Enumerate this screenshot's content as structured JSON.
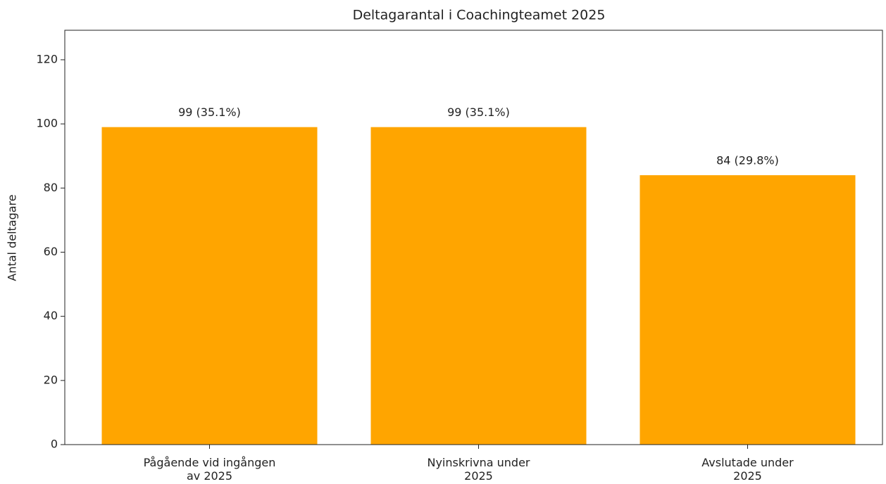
{
  "chart_data": {
    "type": "bar",
    "title": "Deltagarantal i Coachingteamet 2025",
    "ylabel": "Antal deltagare",
    "categories": [
      "Pågående vid ingången\nav 2025",
      "Nyinskrivna under\n2025",
      "Avslutade under\n2025"
    ],
    "values": [
      99,
      99,
      84
    ],
    "value_labels": [
      "99 (35.1%)",
      "99 (35.1%)",
      "84 (29.8%)"
    ],
    "color": "#ffa500",
    "ylim": [
      0,
      129.2
    ],
    "yticks": [
      0,
      20,
      40,
      60,
      80,
      100,
      120
    ],
    "grid": false
  }
}
